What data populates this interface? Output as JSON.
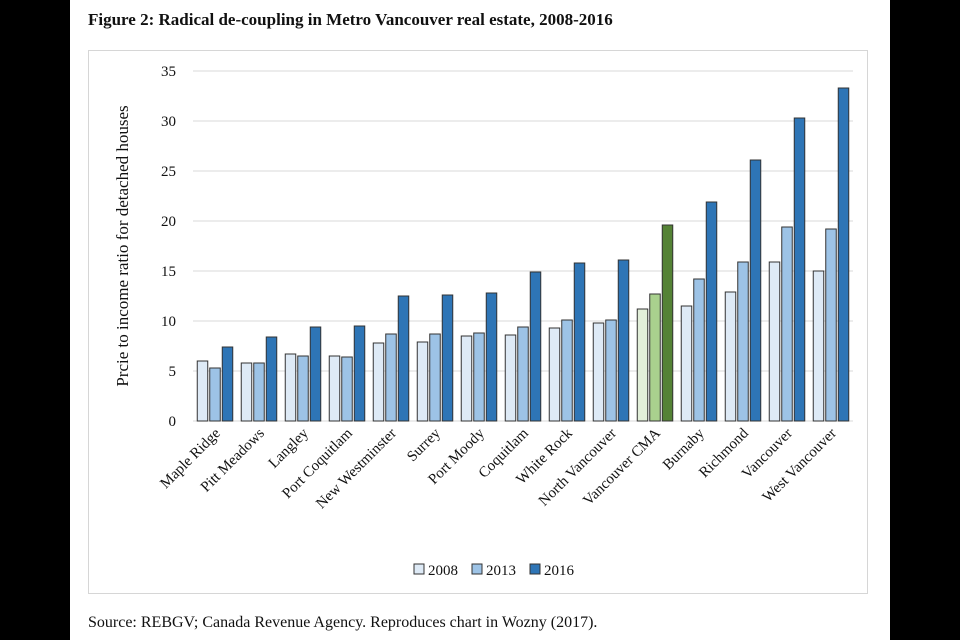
{
  "figure_title": "Figure 2: Radical de-coupling in Metro Vancouver real estate, 2008-2016",
  "source": "Source: REBGV; Canada Revenue Agency. Reproduces chart in Wozny (2017).",
  "chart_data": {
    "type": "bar",
    "title": "",
    "xlabel": "",
    "ylabel": "Prcie to income ratio for detached houses",
    "ylim": [
      0,
      35
    ],
    "yticks": [
      0,
      5,
      10,
      15,
      20,
      25,
      30,
      35
    ],
    "grid": true,
    "legend_placement": "bottom",
    "categories": [
      "Maple Ridge",
      "Pitt Meadows",
      "Langley",
      "Port Coquitlam",
      "New Westminster",
      "Surrey",
      "Port Moody",
      "Coquitlam",
      "White Rock",
      "North Vancouver",
      "Vancouver CMA",
      "Burnaby",
      "Richmond",
      "Vancouver",
      "West Vancouver"
    ],
    "highlight_category": "Vancouver CMA",
    "series": [
      {
        "name": "2008",
        "color": "#deeaf6",
        "highlight_color": "#e2efd9",
        "values": [
          6.0,
          5.8,
          6.7,
          6.5,
          7.8,
          7.9,
          8.5,
          8.6,
          9.3,
          9.8,
          11.2,
          11.5,
          12.9,
          15.9,
          15.0
        ]
      },
      {
        "name": "2013",
        "color": "#9dc3e6",
        "highlight_color": "#a9d18e",
        "values": [
          5.3,
          5.8,
          6.5,
          6.4,
          8.7,
          8.7,
          8.8,
          9.4,
          10.1,
          10.1,
          12.7,
          14.2,
          15.9,
          19.4,
          19.2
        ]
      },
      {
        "name": "2016",
        "color": "#2e75b6",
        "highlight_color": "#548235",
        "values": [
          7.4,
          8.4,
          9.4,
          9.5,
          12.5,
          12.6,
          12.8,
          14.9,
          15.8,
          16.1,
          19.6,
          21.9,
          26.1,
          30.3,
          33.3
        ]
      }
    ]
  }
}
